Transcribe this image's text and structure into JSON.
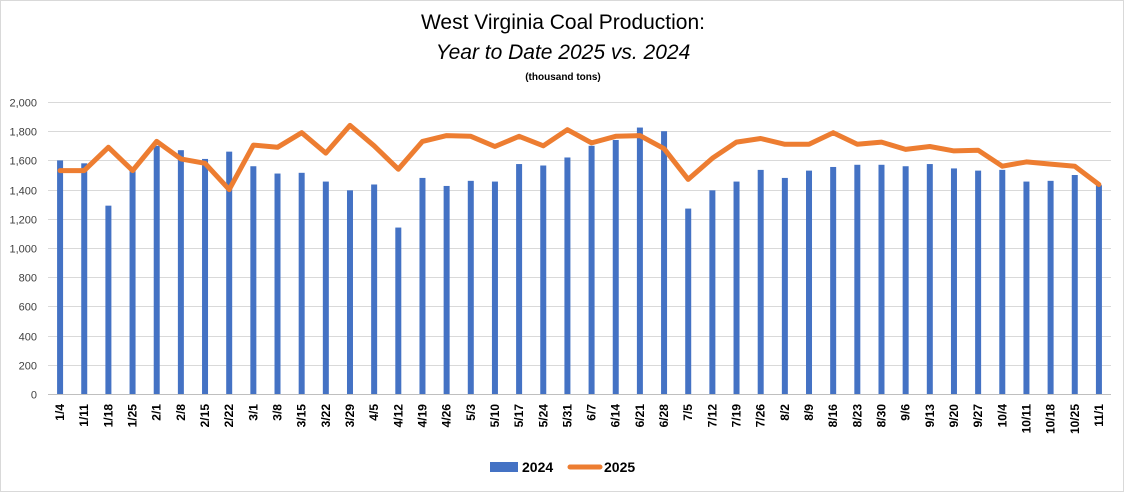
{
  "chart_data": {
    "type": "bar+line",
    "title": "West Virginia Coal Production:",
    "subtitle": "Year to Date 2025 vs. 2024",
    "unit_note": "(thousand tons)",
    "ylim": [
      0,
      2000
    ],
    "yticks": [
      "0",
      "200",
      "400",
      "600",
      "800",
      "1,000",
      "1,200",
      "1,400",
      "1,600",
      "1,800",
      "2,000"
    ],
    "ytick_values": [
      0,
      200,
      400,
      600,
      800,
      1000,
      1200,
      1400,
      1600,
      1800,
      2000
    ],
    "grid": true,
    "legend_position": "bottom",
    "categories": [
      "1/4",
      "1/11",
      "1/18",
      "1/25",
      "2/1",
      "2/8",
      "2/15",
      "2/22",
      "3/1",
      "3/8",
      "3/15",
      "3/22",
      "3/29",
      "4/5",
      "4/12",
      "4/19",
      "4/26",
      "5/3",
      "5/10",
      "5/17",
      "5/24",
      "5/31",
      "6/7",
      "6/14",
      "6/21",
      "6/28",
      "7/5",
      "7/12",
      "7/19",
      "7/26",
      "8/2",
      "8/9",
      "8/16",
      "8/23",
      "8/30",
      "9/6",
      "9/13",
      "9/20",
      "9/27",
      "10/4",
      "10/11",
      "10/18",
      "10/25",
      "11/1"
    ],
    "series": [
      {
        "name": "2024",
        "kind": "bar",
        "color": "#4472c4",
        "values": [
          1600,
          1580,
          1290,
          1540,
          1700,
          1670,
          1610,
          1660,
          1560,
          1510,
          1515,
          1455,
          1395,
          1435,
          1140,
          1480,
          1425,
          1460,
          1455,
          1575,
          1565,
          1620,
          1700,
          1740,
          1825,
          1800,
          1270,
          1395,
          1455,
          1535,
          1480,
          1530,
          1555,
          1570,
          1570,
          1560,
          1575,
          1545,
          1530,
          1535,
          1455,
          1460,
          1500,
          1430
        ]
      },
      {
        "name": "2025",
        "kind": "line",
        "color": "#ed7d31",
        "values": [
          1530,
          1530,
          1690,
          1530,
          1730,
          1610,
          1580,
          1400,
          1705,
          1690,
          1790,
          1650,
          1840,
          1700,
          1540,
          1730,
          1770,
          1765,
          1695,
          1765,
          1700,
          1810,
          1720,
          1765,
          1770,
          1680,
          1470,
          1615,
          1725,
          1750,
          1710,
          1710,
          1790,
          1710,
          1725,
          1675,
          1695,
          1665,
          1670,
          1560,
          1590,
          1575,
          1560,
          1435
        ]
      }
    ]
  }
}
